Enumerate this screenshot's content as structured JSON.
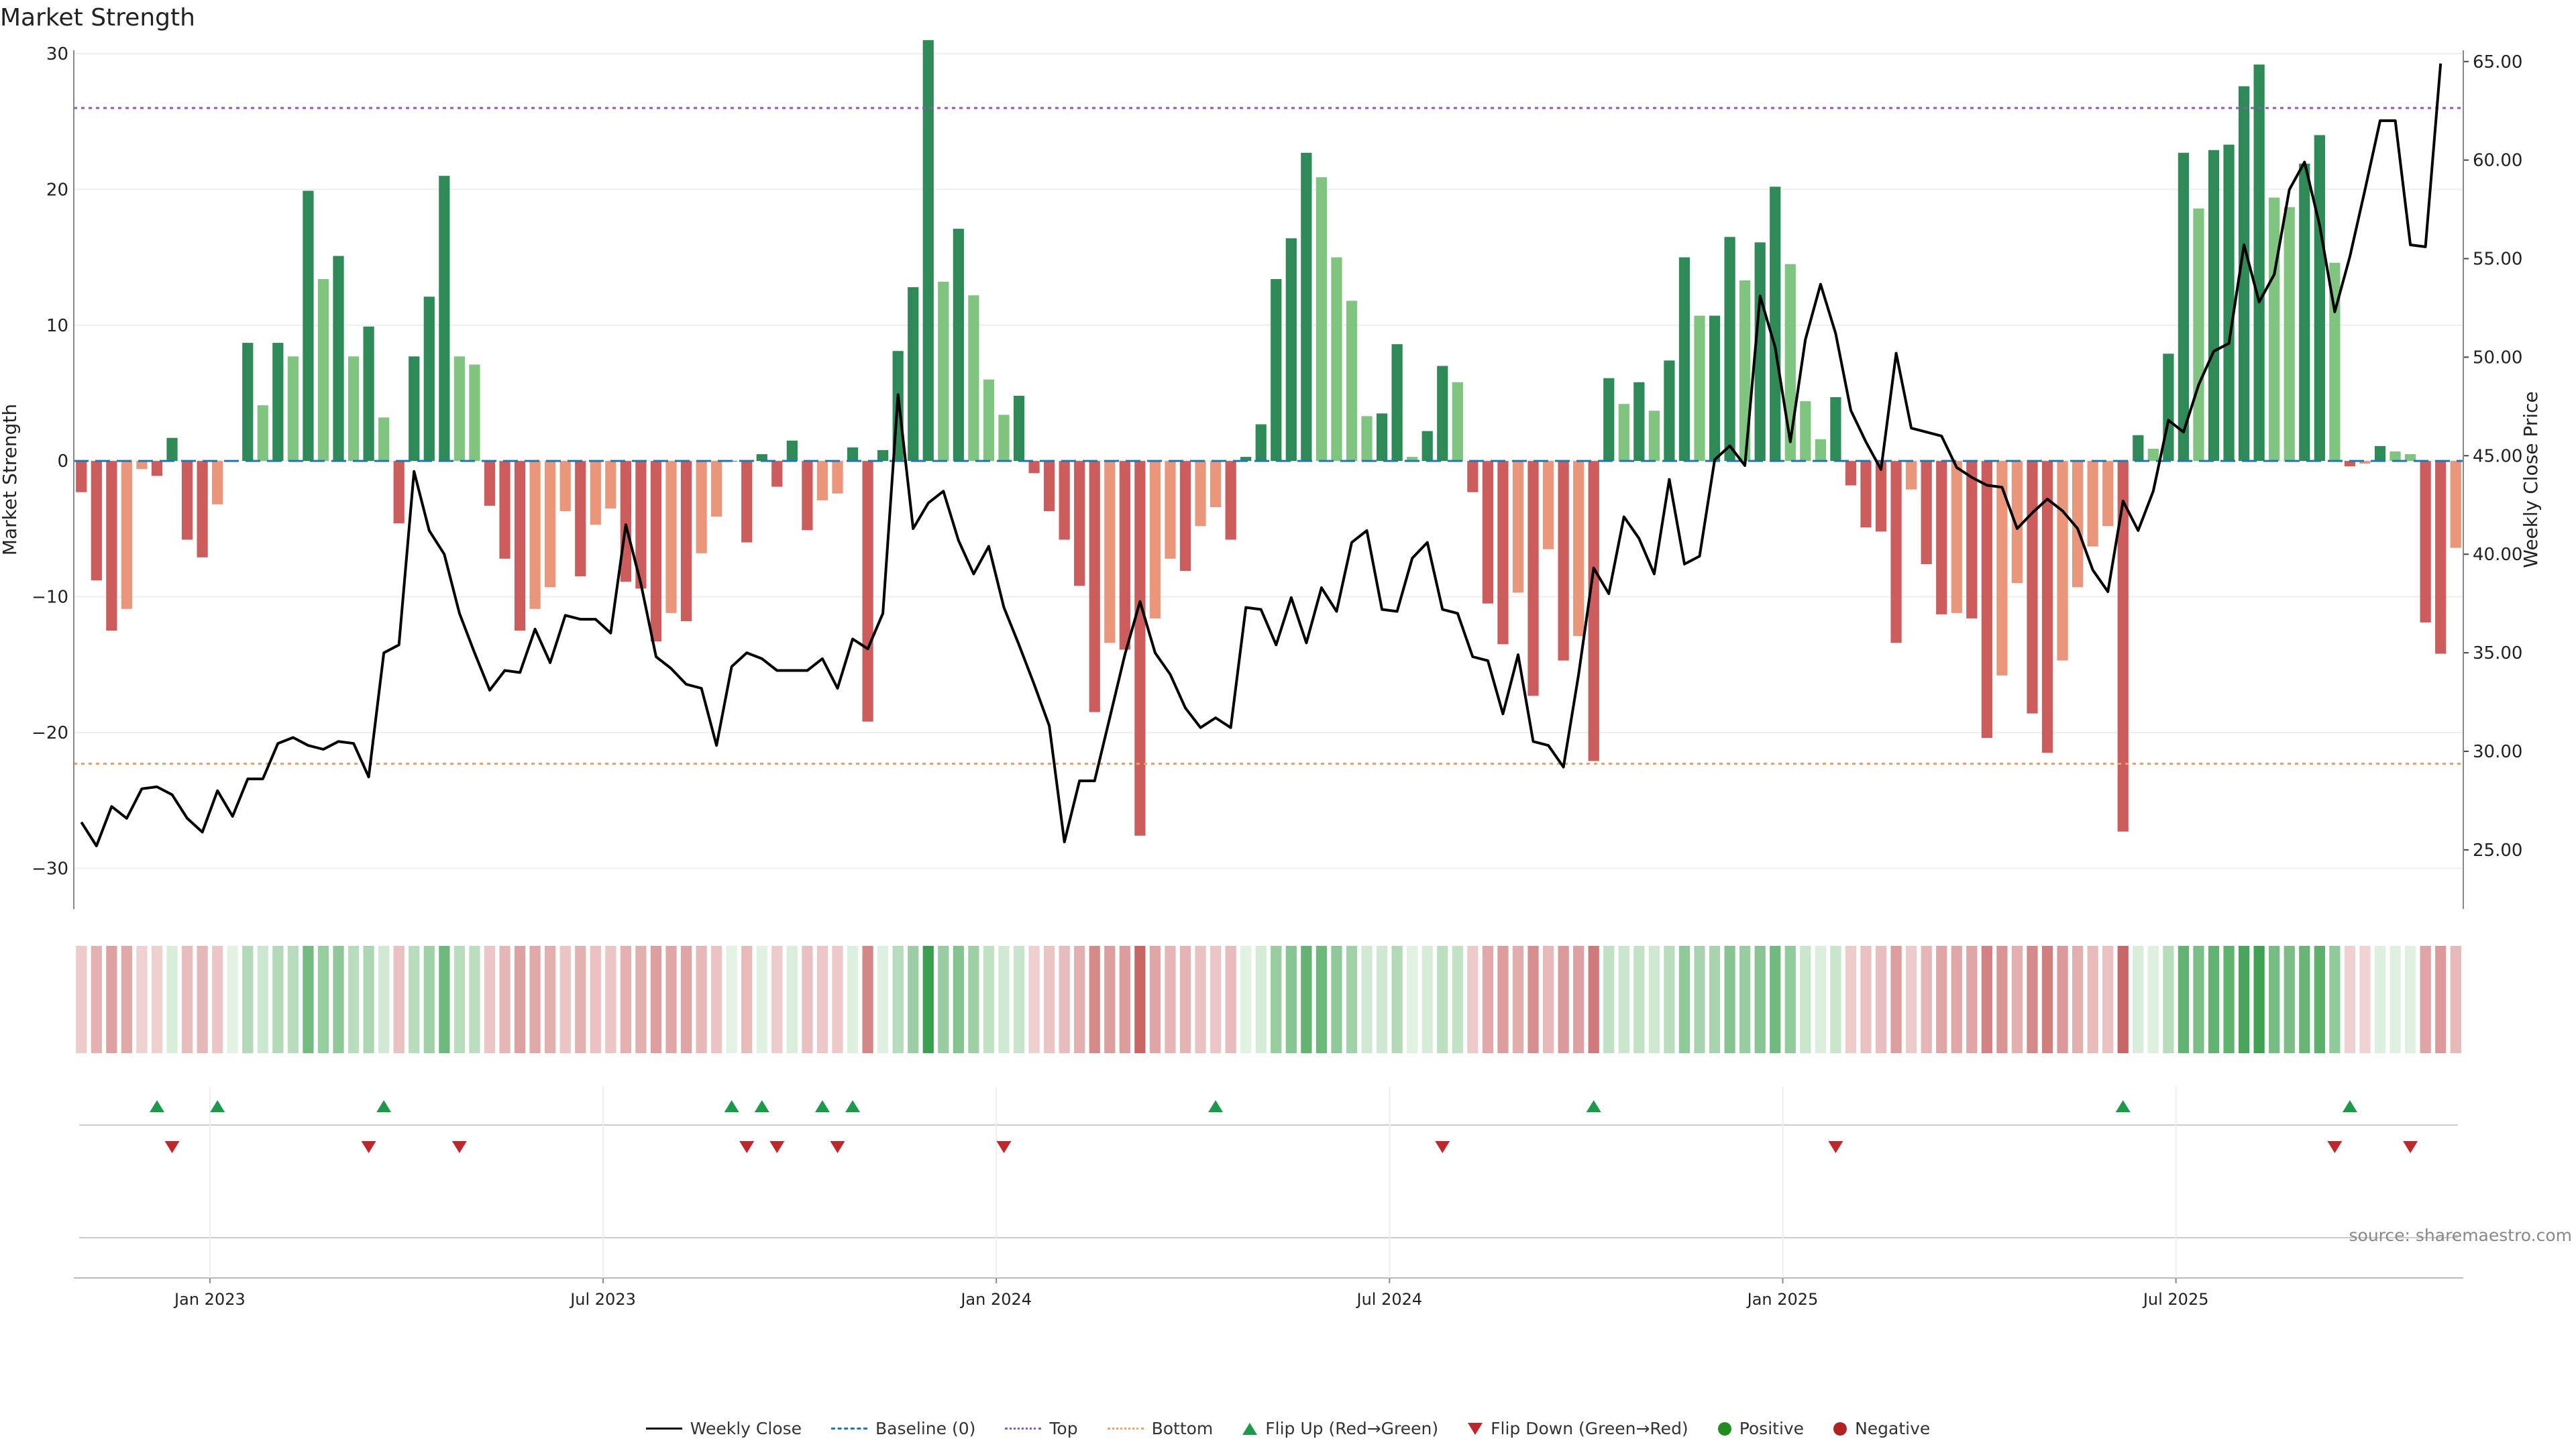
{
  "title": "Market Strength",
  "source": "source: sharemaestro.com",
  "chart_data": {
    "type": "bar",
    "title": "Market Strength",
    "ylabel": "Market Strength",
    "y2label": "Weekly Close Price",
    "ylim": [
      -33,
      30
    ],
    "y2lim": [
      22,
      65.4
    ],
    "yticks": [
      30,
      20,
      10,
      0,
      -10,
      -20,
      -30
    ],
    "ytick_labels": [
      "30",
      "20",
      "10",
      "0",
      "−10",
      "−20",
      "−30"
    ],
    "y2ticks": [
      65,
      60,
      55,
      50,
      45,
      40,
      35,
      30,
      25
    ],
    "y2tick_labels": [
      "65.00",
      "60.00",
      "55.00",
      "50.00",
      "45.00",
      "40.00",
      "35.00",
      "30.00",
      "25.00"
    ],
    "x_tick_labels": [
      "Jan 2023",
      "Jul 2023",
      "Jan 2024",
      "Jul 2024",
      "Jan 2025",
      "Jul 2025"
    ],
    "x_tick_weeks": [
      9,
      35,
      61,
      87,
      113,
      139
    ],
    "top_line": 26,
    "bottom_line": -22.3,
    "strength": [
      -2.3,
      -8.8,
      -12.5,
      -10.9,
      -0.6,
      -1.1,
      1.7,
      -5.8,
      -7.1,
      -3.2,
      0,
      8.7,
      4.1,
      8.7,
      7.7,
      19.9,
      13.4,
      15.1,
      7.7,
      9.9,
      3.2,
      -4.6,
      7.7,
      12.1,
      21,
      7.7,
      7.1,
      -3.3,
      -7.2,
      -12.5,
      -10.9,
      -9.3,
      -3.7,
      -8.5,
      -4.7,
      -3.5,
      -8.9,
      -9.4,
      -13.3,
      -11.2,
      -11.8,
      -6.8,
      -4.1,
      0,
      -6,
      0.5,
      -1.9,
      1.5,
      -5.1,
      -2.9,
      -2.4,
      1,
      -19.2,
      0.8,
      8.1,
      12.8,
      31,
      13.2,
      17.1,
      12.2,
      6,
      3.4,
      4.8,
      -0.9,
      -3.7,
      -5.8,
      -9.2,
      -18.5,
      -13.4,
      -13.9,
      -27.6,
      -11.6,
      -7.2,
      -8.1,
      -4.8,
      -3.4,
      -5.8,
      0.3,
      2.7,
      13.4,
      16.4,
      22.7,
      20.9,
      15,
      11.8,
      3.3,
      3.5,
      8.6,
      0.3,
      2.2,
      7,
      5.8,
      -2.3,
      -10.5,
      -13.5,
      -9.7,
      -17.3,
      -6.5,
      -14.7,
      -12.9,
      -22.1,
      6.1,
      4.2,
      5.8,
      3.7,
      7.4,
      15,
      10.7,
      10.7,
      16.5,
      13.3,
      16.1,
      20.2,
      14.5,
      4.4,
      1.6,
      4.7,
      -1.8,
      -4.9,
      -5.2,
      -13.4,
      -2.1,
      -7.6,
      -11.3,
      -11.2,
      -11.6,
      -20.4,
      -15.8,
      -9,
      -18.6,
      -21.5,
      -14.7,
      -9.3,
      -6.3,
      -4.8,
      -27.3,
      1.9,
      0.9,
      7.9,
      22.7,
      18.6,
      22.9,
      23.3,
      27.6,
      29.2,
      19.4,
      18.7,
      21.9,
      24,
      14.6,
      -0.4,
      -0.2,
      1.1,
      0.7,
      0.5,
      -11.9,
      -14.2,
      -6.4
    ],
    "close": [
      26.4,
      25.2,
      27.2,
      26.6,
      28.1,
      28.2,
      27.8,
      26.6,
      25.9,
      28,
      26.7,
      28.6,
      28.6,
      30.4,
      30.7,
      30.3,
      30.1,
      30.5,
      30.4,
      28.7,
      35,
      35.4,
      44.2,
      41.2,
      40,
      37,
      35,
      33.1,
      34.1,
      34,
      36.2,
      34.5,
      36.9,
      36.7,
      36.7,
      36,
      41.5,
      38.5,
      34.8,
      34.2,
      33.4,
      33.2,
      30.3,
      34.3,
      35,
      34.7,
      34.1,
      34.1,
      34.1,
      34.7,
      33.2,
      35.7,
      35.2,
      37,
      48.1,
      41.3,
      42.6,
      43.2,
      40.7,
      39,
      40.4,
      37.3,
      35.4,
      33.4,
      31.3,
      25.4,
      28.5,
      28.5,
      31.7,
      34.9,
      37.6,
      35,
      33.9,
      32.2,
      31.2,
      31.7,
      31.2,
      37.3,
      37.2,
      35.4,
      37.8,
      35.5,
      38.3,
      37.1,
      40.6,
      41.2,
      37.2,
      37.1,
      39.8,
      40.6,
      37.2,
      37,
      34.8,
      34.6,
      31.9,
      34.9,
      30.5,
      30.3,
      29.2,
      33.9,
      39.3,
      38,
      41.9,
      40.8,
      39,
      43.8,
      39.5,
      39.9,
      44.8,
      45.5,
      44.5,
      53.1,
      50.5,
      45.7,
      50.9,
      53.7,
      51.2,
      47.3,
      45.7,
      44.3,
      50.2,
      46.4,
      46.2,
      46,
      44.4,
      43.9,
      43.5,
      43.4,
      41.3,
      42.1,
      42.8,
      42.2,
      41.3,
      39.2,
      38.1,
      42.7,
      41.2,
      43.2,
      46.8,
      46.2,
      48.6,
      50.3,
      50.7,
      55.7,
      52.8,
      54.2,
      58.5,
      59.9,
      56.7,
      52.3,
      55.1,
      58.5,
      62,
      62,
      55.7,
      55.6,
      64.9
    ],
    "flip_up_weeks": [
      5,
      9,
      20,
      43,
      45,
      49,
      51,
      75,
      100,
      135,
      150
    ],
    "flip_down_weeks": [
      6,
      19,
      25,
      44,
      46,
      50,
      61,
      90,
      116,
      149,
      154
    ],
    "series": [
      {
        "name": "Weekly Close"
      },
      {
        "name": "Baseline (0)"
      },
      {
        "name": "Top"
      },
      {
        "name": "Bottom"
      },
      {
        "name": "Flip Up (Red→Green)"
      },
      {
        "name": "Flip Down (Green→Red)"
      },
      {
        "name": "Positive"
      },
      {
        "name": "Negative"
      }
    ]
  },
  "legend": {
    "weekly_close": "Weekly Close",
    "baseline": "Baseline (0)",
    "top": "Top",
    "bottom": "Bottom",
    "flip_up": "Flip Up (Red→Green)",
    "flip_down": "Flip Down (Green→Red)",
    "positive": "Positive",
    "negative": "Negative"
  },
  "colors": {
    "pos_strong": "#2e8b57",
    "pos_weak": "#7fc47f",
    "neg_strong": "#cd5c5c",
    "neg_weak": "#e9967a",
    "close": "#000000",
    "top": "#9b4dca",
    "bottom": "#f0a060",
    "baseline": "#1f77b4",
    "flip_up": "#1a9a4a",
    "flip_down": "#c0272d",
    "positive_dot": "#228b22",
    "negative_dot": "#b22222"
  }
}
